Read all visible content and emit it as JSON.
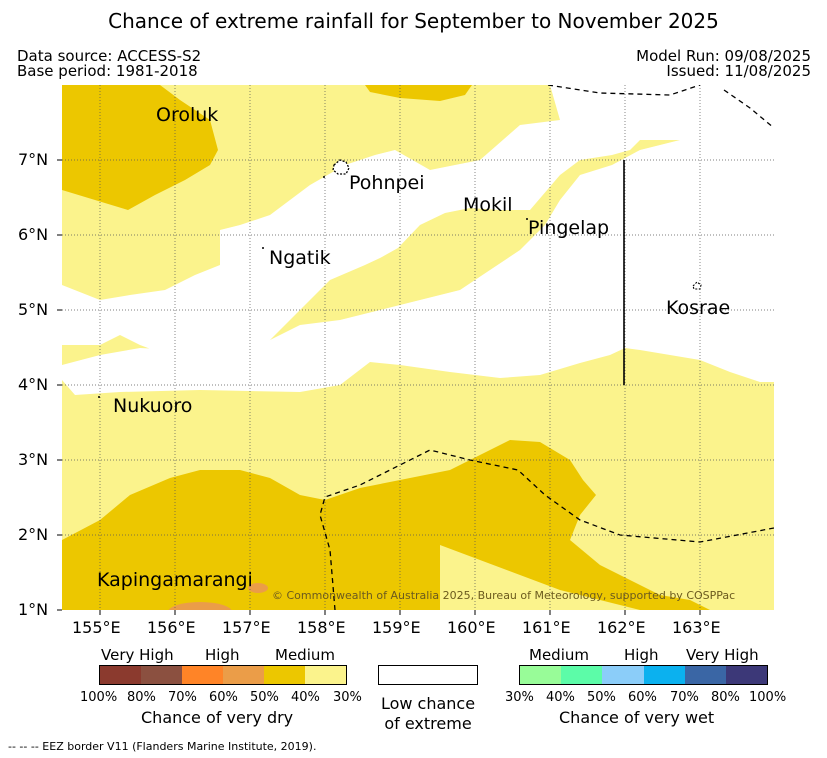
{
  "title": "Chance of extreme rainfall for September to November 2025",
  "meta": {
    "data_source": "Data source: ACCESS-S2",
    "base_period": "Base period: 1981-2018",
    "model_run": "Model Run: 09/08/2025",
    "issued": "Issued: 11/08/2025"
  },
  "axes": {
    "lat_labels": [
      "7°N",
      "6°N",
      "5°N",
      "4°N",
      "3°N",
      "2°N",
      "1°N"
    ],
    "lon_labels": [
      "155°E",
      "156°E",
      "157°E",
      "158°E",
      "159°E",
      "160°E",
      "161°E",
      "162°E",
      "163°E"
    ]
  },
  "places": {
    "oroluk": "Oroluk",
    "pohnpei": "Pohnpei",
    "mokil": "Mokil",
    "pingelap": "Pingelap",
    "ngatik": "Ngatik",
    "kosrae": "Kosrae",
    "nukuoro": "Nukuoro",
    "kapingamarangi": "Kapingamarangi"
  },
  "copyright": "© Commonwealth of Australia 2025, Bureau of Meteorology, supported by COSPPac",
  "legend": {
    "dry": {
      "headers": [
        "Very High",
        "High",
        "Medium"
      ],
      "colors": [
        "#8b3a2e",
        "#8b5040",
        "#ff8427",
        "#eb9d48",
        "#ecc700",
        "#fbf38c"
      ],
      "percent_labels": [
        "100%",
        "80%",
        "70%",
        "60%",
        "50%",
        "40%",
        "30%"
      ],
      "caption": "Chance of very dry"
    },
    "low": {
      "line1": "Low chance",
      "line2": "of extreme"
    },
    "wet": {
      "headers": [
        "Medium",
        "High",
        "Very High"
      ],
      "colors": [
        "#98fc98",
        "#5cfca8",
        "#8bcdf9",
        "#0bb1ef",
        "#3a66a5",
        "#3c3878"
      ],
      "percent_labels": [
        "30%",
        "40%",
        "50%",
        "60%",
        "70%",
        "80%",
        "100%"
      ],
      "caption": "Chance of very wet"
    }
  },
  "footnote": "--  --  -- EEZ border V11 (Flanders Marine Institute, 2019)."
}
